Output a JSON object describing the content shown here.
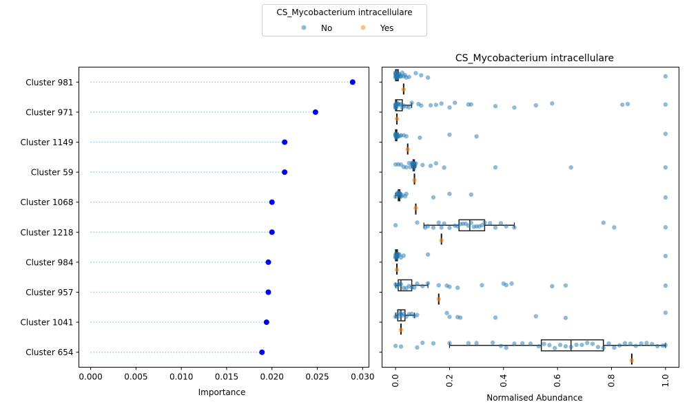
{
  "legend": {
    "title": "CS_Mycobacterium intracellulare",
    "entries": [
      {
        "label": "No",
        "color": "#1f77b4"
      },
      {
        "label": "Yes",
        "color": "#ff7f0e"
      }
    ]
  },
  "chart_data": [
    {
      "type": "lollipop",
      "orientation": "horizontal",
      "categories": [
        "Cluster 981",
        "Cluster 971",
        "Cluster 1149",
        "Cluster 59",
        "Cluster 1068",
        "Cluster 1218",
        "Cluster 984",
        "Cluster 957",
        "Cluster 1041",
        "Cluster 654"
      ],
      "values": [
        0.0289,
        0.0248,
        0.0214,
        0.0214,
        0.02,
        0.02,
        0.0196,
        0.0196,
        0.0194,
        0.0189
      ],
      "xlabel": "Importance",
      "xlim": [
        -0.0013,
        0.0307
      ],
      "xticks": [
        "0.000",
        "0.005",
        "0.010",
        "0.015",
        "0.020",
        "0.025",
        "0.030"
      ],
      "marker_color": "#0000ff",
      "stem_color": "#87ceeb"
    },
    {
      "type": "box_strip",
      "orientation": "horizontal",
      "title": "CS_Mycobacterium intracellulare",
      "xlabel": "Normalised Abundance",
      "xlim": [
        -0.05,
        1.05
      ],
      "xticks": [
        "0.0",
        "0.2",
        "0.4",
        "0.6",
        "0.8",
        "1.0"
      ],
      "hue": [
        "No",
        "Yes"
      ],
      "groups": [
        {
          "category": "Cluster 981",
          "No": {
            "box": [
              0.0,
              0.0,
              0.005,
              0.01,
              0.01
            ],
            "points": [
              0,
              0,
              0,
              0,
              0,
              0.002,
              0.003,
              0.004,
              0.005,
              0.006,
              0.007,
              0.008,
              0.01,
              0.012,
              0.015,
              0.018,
              0.02,
              0.025,
              0.03,
              0.035,
              0.04,
              0.05,
              0.075,
              0.095,
              0.12,
              1.0
            ]
          },
          "Yes": {
            "points": [
              0.03
            ]
          }
        },
        {
          "category": "Cluster 971",
          "No": {
            "box": [
              0.0,
              0.0,
              0.004,
              0.025,
              0.06
            ],
            "points": [
              0,
              0,
              0,
              0,
              0,
              0.003,
              0.005,
              0.008,
              0.01,
              0.015,
              0.02,
              0.025,
              0.03,
              0.04,
              0.05,
              0.06,
              0.085,
              0.095,
              0.13,
              0.15,
              0.17,
              0.2,
              0.22,
              0.27,
              0.28,
              0.37,
              0.44,
              0.52,
              0.58,
              0.84,
              0.86,
              1.0
            ]
          },
          "Yes": {
            "points": [
              0.005
            ]
          }
        },
        {
          "category": "Cluster 1149",
          "No": {
            "box": [
              0.0,
              0.0,
              0.002,
              0.005,
              0.01
            ],
            "points": [
              0,
              0,
              0,
              0,
              0.002,
              0.004,
              0.006,
              0.01,
              0.015,
              0.02,
              0.03,
              0.04,
              0.09,
              0.2,
              0.3,
              1.0
            ]
          },
          "Yes": {
            "points": [
              0.045
            ]
          }
        },
        {
          "category": "Cluster 59",
          "No": {
            "box": [
              0.06,
              0.065,
              0.067,
              0.07,
              0.075
            ],
            "points": [
              0,
              0.01,
              0.02,
              0.03,
              0.04,
              0.05,
              0.055,
              0.06,
              0.062,
              0.064,
              0.066,
              0.068,
              0.07,
              0.072,
              0.075,
              0.1,
              0.13,
              0.15,
              0.18,
              0.37,
              0.65,
              1.0
            ]
          },
          "Yes": {
            "points": [
              0.07
            ]
          }
        },
        {
          "category": "Cluster 1068",
          "No": {
            "box": [
              0.0,
              0.01,
              0.013,
              0.016,
              0.02
            ],
            "points": [
              0,
              0.005,
              0.008,
              0.01,
              0.012,
              0.014,
              0.016,
              0.018,
              0.02,
              0.025,
              0.035,
              0.04,
              0.14,
              0.2,
              0.28,
              1.0
            ]
          },
          "Yes": {
            "points": [
              0.075
            ]
          }
        },
        {
          "category": "Cluster 1218",
          "No": {
            "box": [
              0.105,
              0.235,
              0.275,
              0.33,
              0.44
            ],
            "points": [
              0,
              0.08,
              0.11,
              0.12,
              0.14,
              0.16,
              0.17,
              0.18,
              0.2,
              0.22,
              0.23,
              0.24,
              0.25,
              0.26,
              0.27,
              0.28,
              0.29,
              0.3,
              0.31,
              0.32,
              0.33,
              0.35,
              0.37,
              0.39,
              0.41,
              0.44,
              0.77,
              0.81,
              1.0
            ]
          },
          "Yes": {
            "points": [
              0.17
            ]
          }
        },
        {
          "category": "Cluster 984",
          "No": {
            "box": [
              0.0,
              0.0,
              0.003,
              0.007,
              0.01
            ],
            "points": [
              0,
              0,
              0,
              0.002,
              0.004,
              0.006,
              0.008,
              0.01,
              0.015,
              0.02,
              0.03,
              0.12,
              1.0
            ]
          },
          "Yes": {
            "points": [
              0.005
            ]
          }
        },
        {
          "category": "Cluster 957",
          "No": {
            "box": [
              0.0,
              0.01,
              0.02,
              0.06,
              0.12
            ],
            "points": [
              0,
              0.005,
              0.01,
              0.015,
              0.02,
              0.03,
              0.04,
              0.05,
              0.06,
              0.07,
              0.08,
              0.1,
              0.12,
              0.16,
              0.19,
              0.2,
              0.23,
              0.32,
              0.4,
              0.41,
              0.43,
              0.58,
              0.63,
              1.0
            ]
          },
          "Yes": {
            "points": [
              0.16
            ]
          }
        },
        {
          "category": "Cluster 1041",
          "No": {
            "box": [
              0.0,
              0.008,
              0.02,
              0.035,
              0.07
            ],
            "points": [
              0,
              0.005,
              0.01,
              0.015,
              0.02,
              0.025,
              0.03,
              0.04,
              0.05,
              0.06,
              0.07,
              0.08,
              0.19,
              0.2,
              0.23,
              0.24,
              0.37,
              0.52,
              0.63,
              1.0
            ]
          },
          "Yes": {
            "points": [
              0.02
            ]
          }
        },
        {
          "category": "Cluster 654",
          "No": {
            "box": [
              0.2,
              0.54,
              0.65,
              0.77,
              1.0
            ],
            "points": [
              0,
              0.02,
              0.08,
              0.1,
              0.14,
              0.2,
              0.27,
              0.3,
              0.36,
              0.39,
              0.41,
              0.44,
              0.47,
              0.5,
              0.53,
              0.55,
              0.57,
              0.59,
              0.61,
              0.63,
              0.65,
              0.67,
              0.69,
              0.71,
              0.73,
              0.75,
              0.77,
              0.79,
              0.81,
              0.83,
              0.85,
              0.87,
              0.89,
              0.91,
              0.93,
              0.95,
              0.97,
              0.99,
              1.0
            ]
          },
          "Yes": {
            "points": [
              0.875
            ]
          }
        }
      ]
    }
  ]
}
